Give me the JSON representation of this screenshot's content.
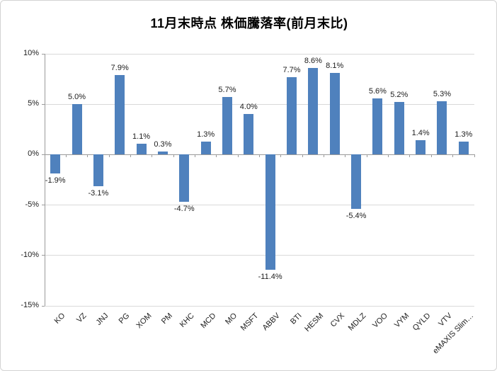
{
  "chart_data": {
    "type": "bar",
    "title": "11月末時点 株価騰落率(前月末比)",
    "categories": [
      "KO",
      "VZ",
      "JNJ",
      "PG",
      "XOM",
      "PM",
      "KHC",
      "MCD",
      "MO",
      "MSFT",
      "ABBV",
      "BTI",
      "HESM",
      "CVX",
      "MDLZ",
      "VOO",
      "VYM",
      "QYLD",
      "VTV",
      "eMAXIS Slim…"
    ],
    "values": [
      -1.9,
      5.0,
      -3.1,
      7.9,
      1.1,
      0.3,
      -4.7,
      1.3,
      5.7,
      4.0,
      -11.4,
      7.7,
      8.6,
      8.1,
      -5.4,
      5.6,
      5.2,
      1.4,
      5.3,
      1.3
    ],
    "labels": [
      "-1.9%",
      "5.0%",
      "-3.1%",
      "7.9%",
      "1.1%",
      "0.3%",
      "-4.7%",
      "1.3%",
      "5.7%",
      "4.0%",
      "-11.4%",
      "7.7%",
      "8.6%",
      "8.1%",
      "-5.4%",
      "5.6%",
      "5.2%",
      "1.4%",
      "5.3%",
      "1.3%"
    ],
    "y_ticks": [
      "10%",
      "5%",
      "0%",
      "-5%",
      "-10%",
      "-15%"
    ],
    "ylim": [
      -15,
      10
    ],
    "grid": true,
    "legend": "none",
    "bar_color": "#4f81bd",
    "gridline_color": "#d9d9d9",
    "axis_color": "#9b9b9b",
    "text_color": "#202020",
    "background_color": "#ffffff"
  }
}
